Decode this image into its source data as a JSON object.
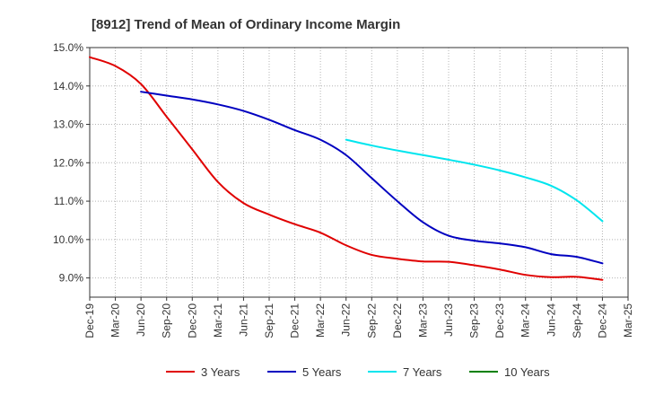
{
  "chart_data": {
    "type": "line",
    "title": "[8912]  Trend of Mean of Ordinary Income Margin",
    "xlabel": "",
    "ylabel": "",
    "x": [
      "Dec-19",
      "Mar-20",
      "Jun-20",
      "Sep-20",
      "Dec-20",
      "Mar-21",
      "Jun-21",
      "Sep-21",
      "Dec-21",
      "Mar-22",
      "Jun-22",
      "Sep-22",
      "Dec-22",
      "Mar-23",
      "Jun-23",
      "Sep-23",
      "Dec-23",
      "Mar-24",
      "Jun-24",
      "Sep-24",
      "Dec-24",
      "Mar-25"
    ],
    "ylim": [
      8.5,
      15.0
    ],
    "yticks": [
      9.0,
      10.0,
      11.0,
      12.0,
      13.0,
      14.0,
      15.0
    ],
    "ytick_labels": [
      "9.0%",
      "10.0%",
      "11.0%",
      "12.0%",
      "13.0%",
      "14.0%",
      "15.0%"
    ],
    "grid": true,
    "legend_position": "bottom",
    "series": [
      {
        "name": "3 Years",
        "color": "#e00000",
        "values": [
          14.75,
          14.52,
          14.05,
          13.2,
          12.35,
          11.5,
          10.95,
          10.65,
          10.4,
          10.18,
          9.85,
          9.6,
          9.5,
          9.43,
          9.42,
          9.33,
          9.22,
          9.08,
          9.02,
          9.03,
          8.95,
          null
        ]
      },
      {
        "name": "5 Years",
        "color": "#0000c0",
        "values": [
          null,
          null,
          13.85,
          13.75,
          13.65,
          13.52,
          13.35,
          13.12,
          12.85,
          12.6,
          12.2,
          11.6,
          11.0,
          10.45,
          10.1,
          9.97,
          9.9,
          9.8,
          9.62,
          9.55,
          9.38,
          null
        ]
      },
      {
        "name": "7 Years",
        "color": "#00e5ee",
        "values": [
          null,
          null,
          null,
          null,
          null,
          null,
          null,
          null,
          null,
          null,
          12.6,
          12.45,
          12.32,
          12.2,
          12.08,
          11.95,
          11.8,
          11.62,
          11.4,
          11.02,
          10.48,
          null
        ]
      },
      {
        "name": "10 Years",
        "color": "#008000",
        "values": [
          null,
          null,
          null,
          null,
          null,
          null,
          null,
          null,
          null,
          null,
          null,
          null,
          null,
          null,
          null,
          null,
          null,
          null,
          null,
          null,
          null,
          null
        ]
      }
    ]
  }
}
